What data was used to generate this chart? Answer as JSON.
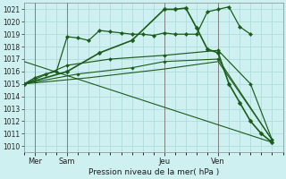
{
  "bg_color": "#cff0f0",
  "grid_color": "#aad8d8",
  "line_color": "#1a5c1a",
  "xlabel": "Pression niveau de la mer( hPa )",
  "ylim": [
    1009.5,
    1021.5
  ],
  "yticks": [
    1010,
    1011,
    1012,
    1013,
    1014,
    1015,
    1016,
    1017,
    1018,
    1019,
    1020,
    1021
  ],
  "xlim": [
    0,
    24
  ],
  "xtick_labels": [
    "Mer",
    "Sam",
    "Jeu",
    "Ven"
  ],
  "xtick_positions": [
    1,
    4,
    13,
    18
  ],
  "vline_positions": [
    1,
    4,
    13,
    18
  ],
  "line1_x": [
    0,
    1,
    2,
    3,
    4,
    5,
    6,
    7,
    8,
    9,
    10,
    11,
    12,
    13,
    14,
    15,
    16,
    17,
    18,
    19,
    20,
    21
  ],
  "line1_y": [
    1015.0,
    1015.5,
    1015.8,
    1016.0,
    1018.8,
    1018.7,
    1018.5,
    1019.3,
    1019.2,
    1019.1,
    1019.0,
    1019.0,
    1018.9,
    1019.1,
    1019.0,
    1019.0,
    1019.0,
    1020.8,
    1021.0,
    1021.2,
    1019.6,
    1019.0
  ],
  "line2_x": [
    0,
    4,
    7,
    10,
    13,
    14,
    15,
    16,
    17,
    18,
    19,
    20,
    21,
    22,
    23
  ],
  "line2_y": [
    1015.0,
    1016.0,
    1017.5,
    1018.5,
    1021.0,
    1021.0,
    1021.1,
    1019.5,
    1017.8,
    1017.5,
    1015.0,
    1013.5,
    1012.0,
    1011.0,
    1010.3
  ],
  "line3_x": [
    0,
    4,
    8,
    13,
    18,
    21,
    23
  ],
  "line3_y": [
    1015.0,
    1016.5,
    1017.0,
    1017.3,
    1017.7,
    1015.0,
    1010.5
  ],
  "line4_x": [
    0,
    5,
    10,
    13,
    18,
    23
  ],
  "line4_y": [
    1015.0,
    1015.8,
    1016.3,
    1016.8,
    1017.0,
    1010.5
  ],
  "line5_x": [
    0,
    6,
    13,
    18,
    23
  ],
  "line5_y": [
    1015.0,
    1015.5,
    1016.2,
    1016.8,
    1010.5
  ],
  "line6_x": [
    0,
    23
  ],
  "line6_y": [
    1016.8,
    1010.3
  ]
}
